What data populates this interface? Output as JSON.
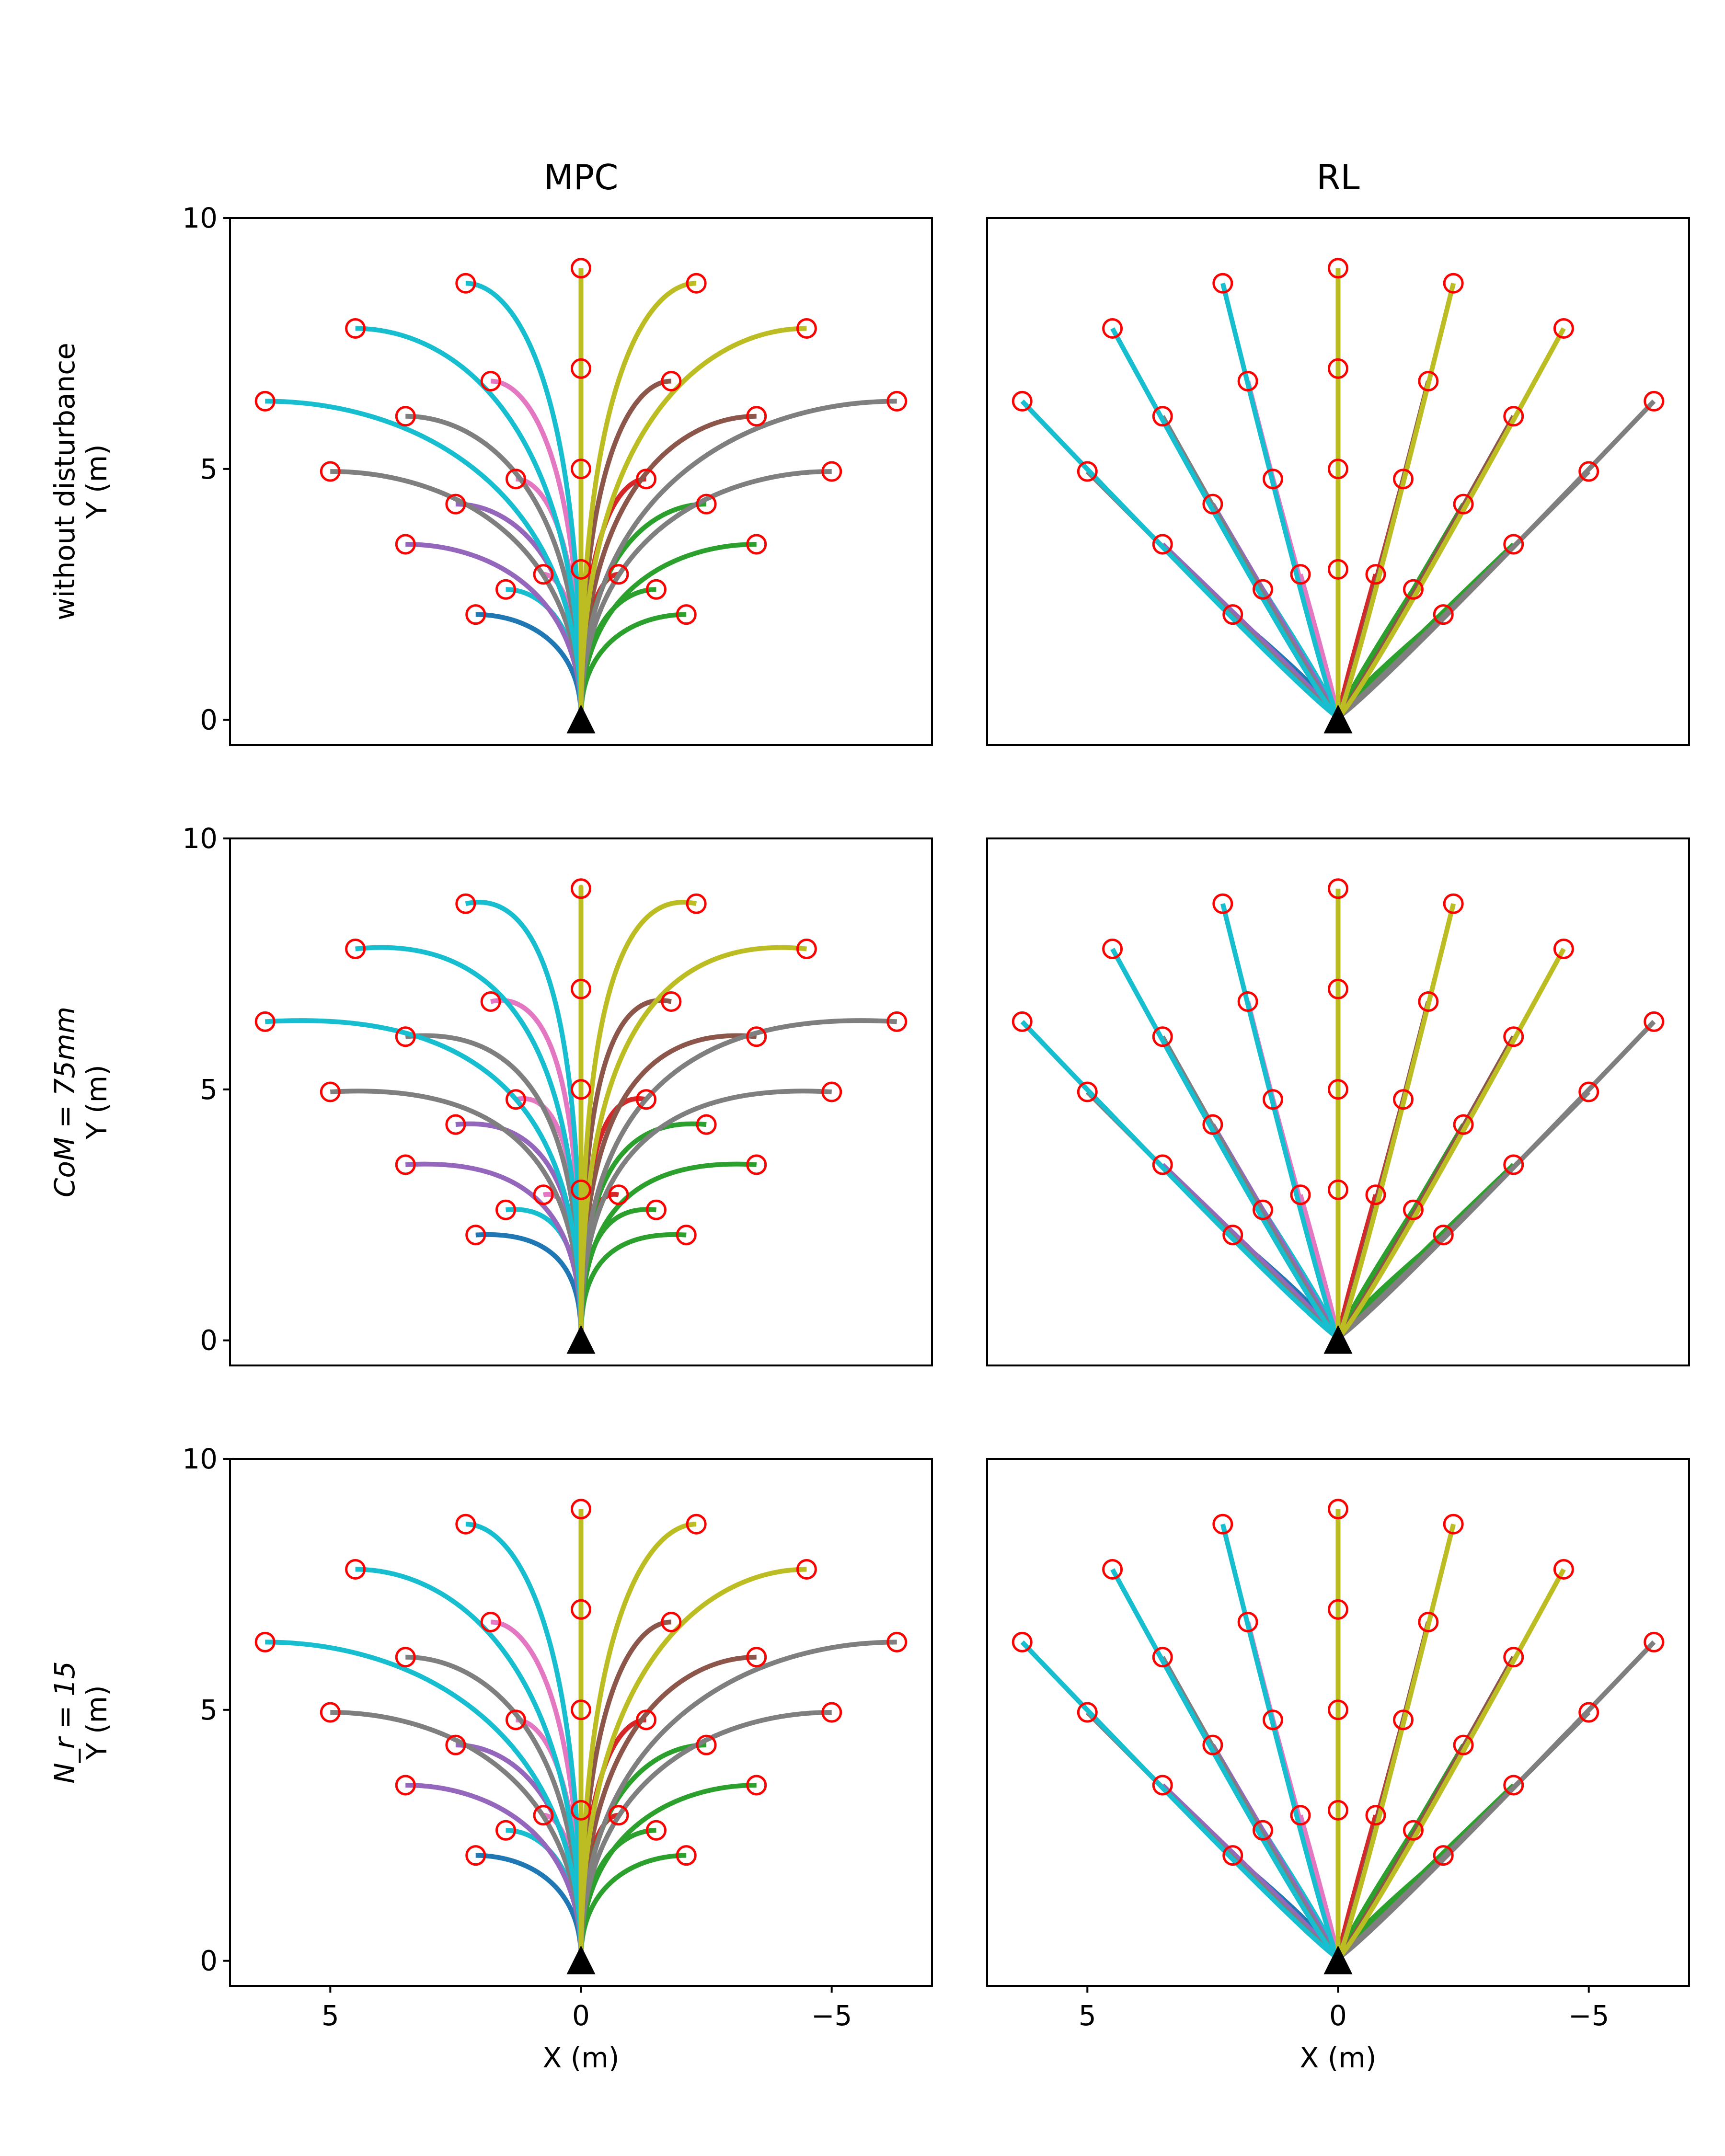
{
  "figure": {
    "columns": [
      "MPC",
      "RL"
    ],
    "rows": [
      {
        "label_parts": [
          "without disturbance"
        ],
        "label_math": ""
      },
      {
        "label_parts": [],
        "label_math": "CoM = 75mm"
      },
      {
        "label_parts": [],
        "label_math": "N_r = 15"
      }
    ],
    "ylabel": "Y (m)",
    "xlabel": "X (m)",
    "xticks": [
      5,
      0,
      -5
    ],
    "xtick_labels": [
      "5",
      "0",
      "−5"
    ],
    "yticks": [
      0,
      5,
      10
    ],
    "ytick_labels": [
      "0",
      "5",
      "10"
    ],
    "colors": {
      "goal_marker": "#ff0000",
      "start_marker": "#000000",
      "tab10": [
        "#1f77b4",
        "#2ca02c",
        "#9467bd",
        "#e377c2",
        "#d62728",
        "#8c564b",
        "#bcbd22",
        "#7f7f7f",
        "#17becf"
      ]
    }
  },
  "chart_data": {
    "type": "scatter",
    "title": "",
    "xlabel": "X (m)",
    "ylabel": "Y (m)",
    "xlim": [
      7,
      -7
    ],
    "ylim": [
      -0.5,
      10
    ],
    "x_axis_inverted": true,
    "grid": false,
    "start": {
      "x": 0,
      "y": 0,
      "marker": "filled black triangle"
    },
    "goals": [
      {
        "x": 2.1,
        "y": 2.1
      },
      {
        "x": -2.1,
        "y": 2.1
      },
      {
        "x": 1.5,
        "y": 2.6
      },
      {
        "x": -1.5,
        "y": 2.6
      },
      {
        "x": 0.75,
        "y": 2.9
      },
      {
        "x": -0.75,
        "y": 2.9
      },
      {
        "x": 0,
        "y": 3.0
      },
      {
        "x": 3.5,
        "y": 3.5
      },
      {
        "x": -3.5,
        "y": 3.5
      },
      {
        "x": 2.5,
        "y": 4.3
      },
      {
        "x": -2.5,
        "y": 4.3
      },
      {
        "x": 1.3,
        "y": 4.8
      },
      {
        "x": -1.3,
        "y": 4.8
      },
      {
        "x": 0,
        "y": 5.0
      },
      {
        "x": 5.0,
        "y": 4.95
      },
      {
        "x": -5.0,
        "y": 4.95
      },
      {
        "x": 3.5,
        "y": 6.05
      },
      {
        "x": -3.5,
        "y": 6.05
      },
      {
        "x": 1.8,
        "y": 6.75
      },
      {
        "x": -1.8,
        "y": 6.75
      },
      {
        "x": 0,
        "y": 7.0
      },
      {
        "x": 6.3,
        "y": 6.35
      },
      {
        "x": -6.3,
        "y": 6.35
      },
      {
        "x": 4.5,
        "y": 7.8
      },
      {
        "x": -4.5,
        "y": 7.8
      },
      {
        "x": 2.3,
        "y": 8.7
      },
      {
        "x": -2.3,
        "y": 8.7
      },
      {
        "x": 0,
        "y": 9.0
      }
    ],
    "panels": [
      {
        "controller": "MPC",
        "condition": "without disturbance",
        "style": "curved"
      },
      {
        "controller": "RL",
        "condition": "without disturbance",
        "style": "straight"
      },
      {
        "controller": "MPC",
        "condition": "CoM = 75mm",
        "style": "wavy"
      },
      {
        "controller": "RL",
        "condition": "CoM = 75mm",
        "style": "straight"
      },
      {
        "controller": "MPC",
        "condition": "N_r = 15",
        "style": "curved"
      },
      {
        "controller": "RL",
        "condition": "N_r = 15",
        "style": "straight"
      }
    ]
  }
}
